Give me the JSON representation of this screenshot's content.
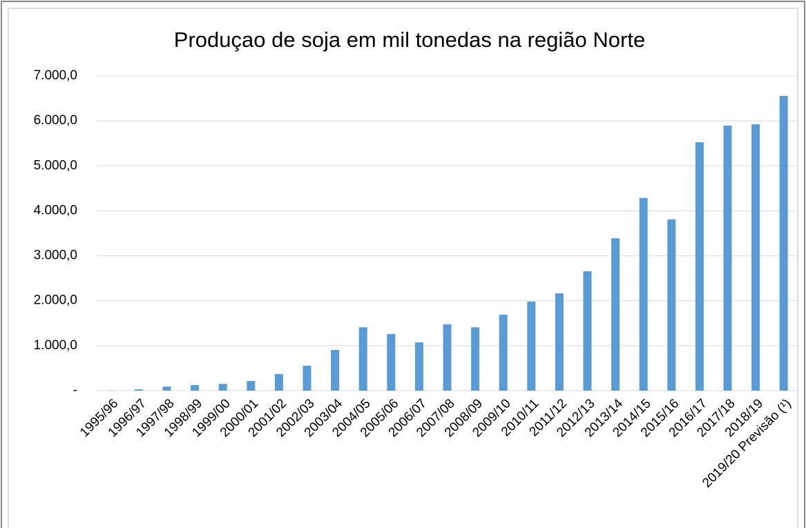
{
  "chart_data": {
    "type": "bar",
    "title": "Produçao de soja em mil tonedas na região Norte",
    "categories": [
      "1995/96",
      "1996/97",
      "1997/98",
      "1998/99",
      "1999/00",
      "2000/01",
      "2001/02",
      "2002/03",
      "2003/04",
      "2004/05",
      "2005/06",
      "2006/07",
      "2007/08",
      "2008/09",
      "2009/10",
      "2010/11",
      "2011/12",
      "2012/13",
      "2013/14",
      "2014/15",
      "2015/16",
      "2016/17",
      "2017/18",
      "2018/19",
      "2019/20 Previsão (¹)"
    ],
    "values": [
      5,
      30,
      90,
      125,
      150,
      215,
      370,
      555,
      905,
      1410,
      1260,
      1075,
      1475,
      1410,
      1690,
      1980,
      2165,
      2655,
      3390,
      4285,
      3810,
      5525,
      5895,
      5925,
      6555
    ],
    "color": "#5b9bd5",
    "ylim": [
      0,
      7000
    ],
    "yticks": [
      {
        "value": 0,
        "label": "-"
      },
      {
        "value": 1000,
        "label": "1.000,0"
      },
      {
        "value": 2000,
        "label": "2.000,0"
      },
      {
        "value": 3000,
        "label": "3.000,0"
      },
      {
        "value": 4000,
        "label": "4.000,0"
      },
      {
        "value": 5000,
        "label": "5.000,0"
      },
      {
        "value": 6000,
        "label": "6.000,0"
      },
      {
        "value": 7000,
        "label": "7.000,0"
      }
    ],
    "grid": true
  }
}
